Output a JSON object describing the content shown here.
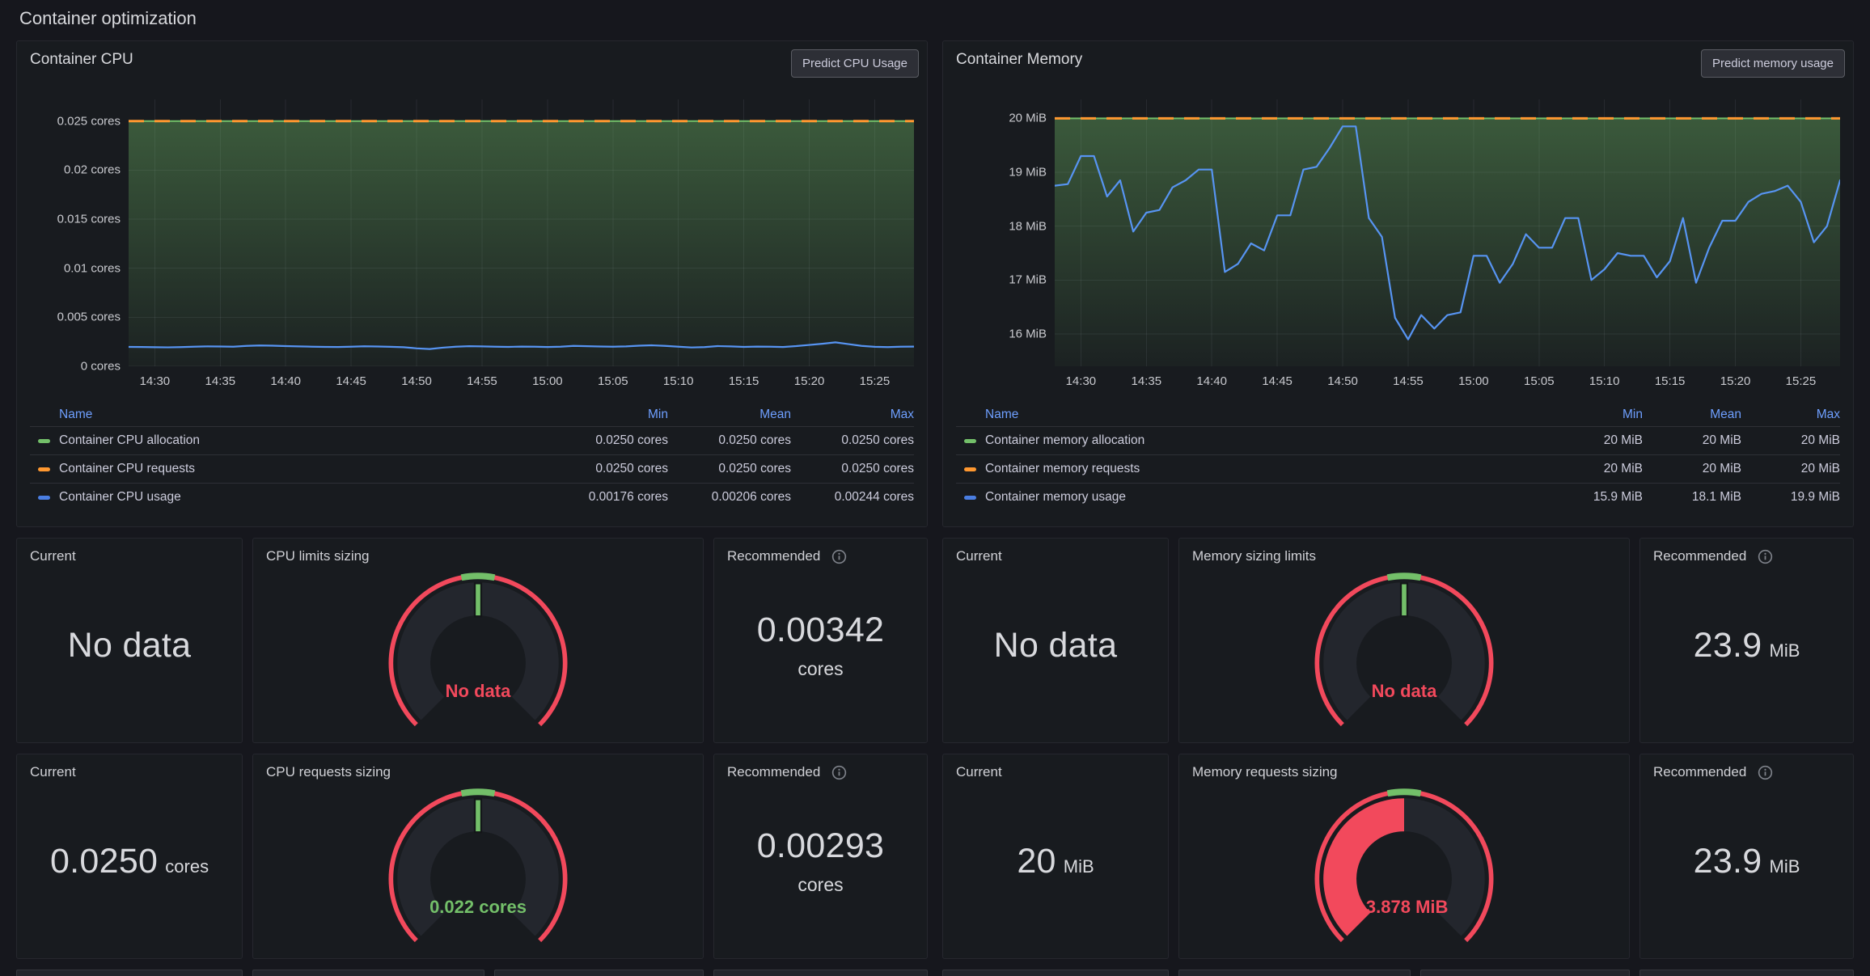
{
  "page": {
    "title": "Container optimization"
  },
  "colors": {
    "green": "#73BF69",
    "orange": "#FF9830",
    "blue": "#5794F2",
    "red": "#F2495C",
    "panel_bg": "#181B1F",
    "page_bg": "#16171D",
    "link_blue": "#6E9FFF"
  },
  "cpu_panel": {
    "title": "Container CPU",
    "button": "Predict CPU Usage",
    "legend": {
      "headers": [
        "Name",
        "Min",
        "Mean",
        "Max"
      ],
      "rows": [
        {
          "name": "Container CPU allocation",
          "color": "green",
          "min": "0.0250 cores",
          "mean": "0.0250 cores",
          "max": "0.0250 cores"
        },
        {
          "name": "Container CPU requests",
          "color": "orange",
          "min": "0.0250 cores",
          "mean": "0.0250 cores",
          "max": "0.0250 cores"
        },
        {
          "name": "Container CPU usage",
          "color": "blue",
          "min": "0.00176 cores",
          "mean": "0.00206 cores",
          "max": "0.00244 cores"
        }
      ]
    }
  },
  "memory_panel": {
    "title": "Container Memory",
    "button": "Predict memory usage",
    "legend": {
      "headers": [
        "Name",
        "Min",
        "Mean",
        "Max"
      ],
      "rows": [
        {
          "name": "Container memory allocation",
          "color": "green",
          "min": "20 MiB",
          "mean": "20 MiB",
          "max": "20 MiB"
        },
        {
          "name": "Container memory requests",
          "color": "orange",
          "min": "20 MiB",
          "mean": "20 MiB",
          "max": "20 MiB"
        },
        {
          "name": "Container memory usage",
          "color": "blue",
          "min": "15.9 MiB",
          "mean": "18.1 MiB",
          "max": "19.9 MiB"
        }
      ]
    }
  },
  "chart_data": [
    {
      "id": "cpu",
      "type": "line",
      "title": "Container CPU",
      "ylabel": "cores",
      "x_range": [
        0,
        60
      ],
      "y_range": [
        0,
        0.0272
      ],
      "grid": true,
      "legend_position": "bottom-table",
      "y_ticks": [
        {
          "v": 0,
          "label": "0 cores"
        },
        {
          "v": 0.005,
          "label": "0.005 cores"
        },
        {
          "v": 0.01,
          "label": "0.01 cores"
        },
        {
          "v": 0.015,
          "label": "0.015 cores"
        },
        {
          "v": 0.02,
          "label": "0.02 cores"
        },
        {
          "v": 0.025,
          "label": "0.025 cores"
        }
      ],
      "x_ticks": [
        {
          "v": 2,
          "label": "14:30"
        },
        {
          "v": 7,
          "label": "14:35"
        },
        {
          "v": 12,
          "label": "14:40"
        },
        {
          "v": 17,
          "label": "14:45"
        },
        {
          "v": 22,
          "label": "14:50"
        },
        {
          "v": 27,
          "label": "14:55"
        },
        {
          "v": 32,
          "label": "15:00"
        },
        {
          "v": 37,
          "label": "15:05"
        },
        {
          "v": 42,
          "label": "15:10"
        },
        {
          "v": 47,
          "label": "15:15"
        },
        {
          "v": 52,
          "label": "15:20"
        },
        {
          "v": 57,
          "label": "15:25"
        }
      ],
      "series": [
        {
          "name": "Container CPU allocation",
          "color": "#73BF69",
          "style": "solid-line-gradient-fill",
          "constant": 0.025
        },
        {
          "name": "Container CPU requests",
          "color": "#FF9830",
          "style": "dashed-line",
          "constant": 0.025
        },
        {
          "name": "Container CPU usage",
          "color": "#5794F2",
          "style": "line",
          "values": [
            0.00198,
            0.00197,
            0.00195,
            0.00193,
            0.00196,
            0.002,
            0.00203,
            0.00202,
            0.002,
            0.00208,
            0.00212,
            0.0021,
            0.00206,
            0.00203,
            0.002,
            0.00198,
            0.00197,
            0.002,
            0.00204,
            0.00202,
            0.00199,
            0.00195,
            0.00183,
            0.00176,
            0.0019,
            0.002,
            0.00205,
            0.00203,
            0.002,
            0.00198,
            0.00201,
            0.002,
            0.00197,
            0.002,
            0.00208,
            0.00205,
            0.00202,
            0.002,
            0.00203,
            0.0021,
            0.00214,
            0.00208,
            0.002,
            0.00192,
            0.00196,
            0.00206,
            0.00203,
            0.00198,
            0.00201,
            0.002,
            0.00197,
            0.00206,
            0.00218,
            0.0023,
            0.00244,
            0.00226,
            0.00208,
            0.00199,
            0.00196,
            0.002,
            0.00201
          ]
        }
      ]
    },
    {
      "id": "mem",
      "type": "line",
      "title": "Container Memory",
      "ylabel": "MiB",
      "x_range": [
        0,
        60
      ],
      "y_range": [
        15.4,
        20.35
      ],
      "grid": true,
      "legend_position": "bottom-table",
      "y_ticks": [
        {
          "v": 16,
          "label": "16 MiB"
        },
        {
          "v": 17,
          "label": "17 MiB"
        },
        {
          "v": 18,
          "label": "18 MiB"
        },
        {
          "v": 19,
          "label": "19 MiB"
        },
        {
          "v": 20,
          "label": "20 MiB"
        }
      ],
      "x_ticks": [
        {
          "v": 2,
          "label": "14:30"
        },
        {
          "v": 7,
          "label": "14:35"
        },
        {
          "v": 12,
          "label": "14:40"
        },
        {
          "v": 17,
          "label": "14:45"
        },
        {
          "v": 22,
          "label": "14:50"
        },
        {
          "v": 27,
          "label": "14:55"
        },
        {
          "v": 32,
          "label": "15:00"
        },
        {
          "v": 37,
          "label": "15:05"
        },
        {
          "v": 42,
          "label": "15:10"
        },
        {
          "v": 47,
          "label": "15:15"
        },
        {
          "v": 52,
          "label": "15:20"
        },
        {
          "v": 57,
          "label": "15:25"
        }
      ],
      "series": [
        {
          "name": "Container memory allocation",
          "color": "#73BF69",
          "style": "solid-line-gradient-fill",
          "constant": 20
        },
        {
          "name": "Container memory requests",
          "color": "#FF9830",
          "style": "dashed-line",
          "constant": 20
        },
        {
          "name": "Container memory usage",
          "color": "#5794F2",
          "style": "line",
          "values": [
            18.75,
            18.78,
            19.3,
            19.3,
            18.55,
            18.85,
            17.9,
            18.25,
            18.3,
            18.72,
            18.85,
            19.05,
            19.05,
            17.15,
            17.3,
            17.68,
            17.55,
            18.2,
            18.2,
            19.05,
            19.1,
            19.45,
            19.85,
            19.85,
            18.15,
            17.8,
            16.3,
            15.9,
            16.35,
            16.1,
            16.35,
            16.4,
            17.45,
            17.45,
            16.95,
            17.3,
            17.85,
            17.6,
            17.6,
            18.15,
            18.15,
            17.0,
            17.2,
            17.5,
            17.45,
            17.45,
            17.05,
            17.35,
            18.15,
            16.95,
            17.6,
            18.1,
            18.1,
            18.45,
            18.6,
            18.65,
            18.75,
            18.45,
            17.7,
            18.0,
            18.85
          ]
        }
      ]
    }
  ],
  "stats": {
    "rows": [
      [
        {
          "current": {
            "title": "Current",
            "value": "No data",
            "unit_inline": ""
          },
          "gauge": {
            "title": "CPU limits sizing",
            "value": "No data",
            "value_color": "red",
            "fill": "none"
          },
          "recommended": {
            "title": "Recommended",
            "value": "0.00342",
            "unit_inline": "",
            "unit_below": "cores"
          }
        },
        {
          "current": {
            "title": "Current",
            "value": "No data",
            "unit_inline": ""
          },
          "gauge": {
            "title": "Memory sizing limits",
            "value": "No data",
            "value_color": "red",
            "fill": "none"
          },
          "recommended": {
            "title": "Recommended",
            "value": "23.9",
            "unit_inline": "MiB",
            "unit_below": ""
          }
        }
      ],
      [
        {
          "current": {
            "title": "Current",
            "value": "0.0250",
            "unit_inline": "cores"
          },
          "gauge": {
            "title": "CPU requests sizing",
            "value": "0.022 cores",
            "value_color": "green",
            "fill": "none"
          },
          "recommended": {
            "title": "Recommended",
            "value": "0.00293",
            "unit_inline": "",
            "unit_below": "cores"
          }
        },
        {
          "current": {
            "title": "Current",
            "value": "20",
            "unit_inline": "MiB"
          },
          "gauge": {
            "title": "Memory requests sizing",
            "value": "-3.878 MiB",
            "value_color": "red",
            "fill": "half"
          },
          "recommended": {
            "title": "Recommended",
            "value": "23.9",
            "unit_inline": "MiB",
            "unit_below": ""
          }
        }
      ]
    ]
  }
}
